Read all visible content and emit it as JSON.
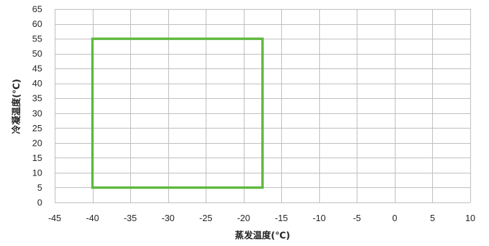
{
  "chart_data": {
    "type": "line",
    "title": "",
    "xlabel": "蒸发温度(℃)",
    "ylabel": "冷凝温度(℃)",
    "xlim": [
      -45,
      10
    ],
    "ylim": [
      0,
      65
    ],
    "xticks": [
      -45,
      -40,
      -35,
      -30,
      -25,
      -20,
      -15,
      -10,
      -5,
      0,
      5,
      10
    ],
    "yticks": [
      0,
      5,
      10,
      15,
      20,
      25,
      30,
      35,
      40,
      45,
      50,
      55,
      60,
      65
    ],
    "xtick_labels": [
      "-45",
      "-40",
      "-35",
      "-30",
      "-25",
      "-20",
      "-15",
      "-10",
      "-5",
      "0",
      "5",
      "10"
    ],
    "ytick_labels": [
      "0",
      "5",
      "10",
      "15",
      "20",
      "25",
      "30",
      "35",
      "40",
      "45",
      "50",
      "55",
      "60",
      "65"
    ],
    "grid": true,
    "series": [
      {
        "color": "#5cb83c",
        "closed": true,
        "x": [
          -40,
          -17.5,
          -17.5,
          -40,
          -40
        ],
        "y": [
          5,
          5,
          55,
          55,
          5
        ]
      }
    ]
  }
}
